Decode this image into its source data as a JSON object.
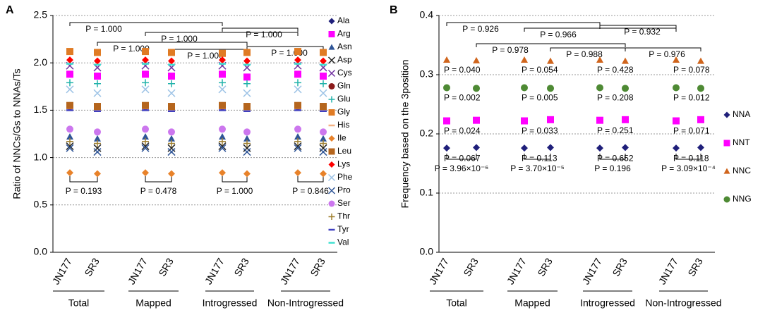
{
  "chart_data": [
    {
      "panel": "A",
      "type": "dot",
      "ylabel": "Ratio of NNCs/Gs to NNAs/Ts",
      "categories": [
        "JN177",
        "SR3",
        "JN177",
        "SR3",
        "JN177",
        "SR3",
        "JN177",
        "SR3"
      ],
      "groups": [
        "Total",
        "Mapped",
        "Introgressed",
        "Non-Introgressed"
      ],
      "ylim": [
        0,
        2.5
      ],
      "yticks": [
        {
          "value": 0,
          "label": "0.0"
        },
        0.5,
        {
          "value": 1,
          "label": "1.0"
        },
        1.5,
        {
          "value": 2,
          "label": "2.0"
        },
        2.5
      ],
      "grid": true,
      "series": [
        {
          "name": "Ala",
          "color": "#1f1f7a",
          "marker": "diamond",
          "values": [
            1.55,
            1.53,
            1.55,
            1.53,
            1.55,
            1.53,
            1.55,
            1.53
          ]
        },
        {
          "name": "Arg",
          "color": "#ff00ff",
          "marker": "square",
          "values": [
            1.88,
            1.86,
            1.88,
            1.86,
            1.88,
            1.85,
            1.88,
            1.86
          ]
        },
        {
          "name": "Asn",
          "color": "#2f5597",
          "marker": "triangle",
          "values": [
            1.22,
            1.2,
            1.22,
            1.2,
            1.22,
            1.2,
            1.22,
            1.2
          ]
        },
        {
          "name": "Asp",
          "color": "#222222",
          "marker": "x",
          "values": [
            1.12,
            1.1,
            1.12,
            1.1,
            1.12,
            1.1,
            1.12,
            1.1
          ]
        },
        {
          "name": "Cys",
          "color": "#7030a0",
          "marker": "x",
          "values": [
            1.97,
            1.95,
            1.97,
            1.95,
            1.97,
            1.95,
            1.97,
            1.95
          ]
        },
        {
          "name": "Gln",
          "color": "#8b1a1a",
          "marker": "circle",
          "values": [
            1.54,
            1.52,
            1.54,
            1.52,
            1.54,
            1.52,
            1.54,
            1.52
          ]
        },
        {
          "name": "Glu",
          "color": "#20b2aa",
          "marker": "plus",
          "values": [
            1.79,
            1.78,
            1.79,
            1.78,
            1.79,
            1.78,
            1.79,
            1.78
          ]
        },
        {
          "name": "Gly",
          "color": "#e07b24",
          "marker": "square",
          "values": [
            2.12,
            2.11,
            2.12,
            2.11,
            2.1,
            2.11,
            2.12,
            2.11
          ]
        },
        {
          "name": "His",
          "color": "#f4b183",
          "marker": "dash",
          "values": [
            1.52,
            1.5,
            1.52,
            1.5,
            1.52,
            1.5,
            1.52,
            1.5
          ]
        },
        {
          "name": "Ile",
          "color": "#e8822a",
          "marker": "diamond",
          "values": [
            0.84,
            0.83,
            0.84,
            0.83,
            0.84,
            0.83,
            0.84,
            0.83
          ]
        },
        {
          "name": "Leu",
          "color": "#b5651d",
          "marker": "square",
          "values": [
            1.55,
            1.54,
            1.55,
            1.54,
            1.55,
            1.54,
            1.55,
            1.54
          ]
        },
        {
          "name": "Lys",
          "color": "#ff0000",
          "marker": "diamond",
          "values": [
            2.03,
            2.02,
            2.03,
            2.02,
            2.03,
            2.02,
            2.03,
            2.02
          ]
        },
        {
          "name": "Phe",
          "color": "#9dc3e6",
          "marker": "x",
          "values": [
            1.72,
            1.68,
            1.72,
            1.68,
            1.72,
            1.68,
            1.72,
            1.68
          ]
        },
        {
          "name": "Pro",
          "color": "#2f5597",
          "marker": "x",
          "values": [
            1.1,
            1.06,
            1.1,
            1.06,
            1.1,
            1.06,
            1.1,
            1.06
          ]
        },
        {
          "name": "Ser",
          "color": "#cc77ee",
          "marker": "circle",
          "values": [
            1.3,
            1.27,
            1.3,
            1.27,
            1.3,
            1.27,
            1.3,
            1.27
          ]
        },
        {
          "name": "Thr",
          "color": "#a08030",
          "marker": "plus",
          "values": [
            1.17,
            1.15,
            1.17,
            1.15,
            1.17,
            1.15,
            1.17,
            1.15
          ]
        },
        {
          "name": "Tyr",
          "color": "#4040c0",
          "marker": "dash",
          "values": [
            1.5,
            1.49,
            1.5,
            1.49,
            1.5,
            1.49,
            1.5,
            1.49
          ]
        },
        {
          "name": "Val",
          "color": "#40e0d0",
          "marker": "dash",
          "values": [
            1.99,
            1.98,
            1.99,
            1.98,
            1.99,
            1.98,
            1.99,
            1.98
          ]
        }
      ],
      "top_brackets": [
        "P = 1.000",
        "P = 1.000",
        "P = 1.000",
        "P = 1.000",
        "P = 1.000",
        "P = 1.000"
      ],
      "pair_brackets": [
        "P = 0.193",
        "P = 0.478",
        "P = 1.000",
        "P = 0.846"
      ]
    },
    {
      "panel": "B",
      "type": "dot",
      "ylabel": "Frequency based on the 3position",
      "categories": [
        "JN177",
        "SR3",
        "JN177",
        "SR3",
        "JN177",
        "SR3",
        "JN177",
        "SR3"
      ],
      "groups": [
        "Total",
        "Mapped",
        "Introgressed",
        "Non-Introgressed"
      ],
      "ylim": [
        0,
        0.4
      ],
      "yticks": [
        {
          "value": 0,
          "label": "0.0"
        },
        0.1,
        0.2,
        0.3,
        0.4
      ],
      "grid": true,
      "series": [
        {
          "name": "NNA",
          "color": "#1f1f7a",
          "marker": "diamond",
          "values": [
            0.176,
            0.177,
            0.176,
            0.177,
            0.176,
            0.177,
            0.176,
            0.177
          ],
          "p_labels": [
            "P = 0.067",
            "P = 0.113",
            "P = 0.652",
            "P = 0.118"
          ]
        },
        {
          "name": "NNT",
          "color": "#ff00ff",
          "marker": "square",
          "values": [
            0.222,
            0.223,
            0.222,
            0.224,
            0.223,
            0.224,
            0.222,
            0.224
          ],
          "p_labels": [
            "P = 0.024",
            "P = 0.033",
            "P = 0.251",
            "P = 0.071"
          ]
        },
        {
          "name": "NNC",
          "color": "#d0651d",
          "marker": "triangle",
          "values": [
            0.325,
            0.324,
            0.325,
            0.323,
            0.325,
            0.323,
            0.325,
            0.323
          ],
          "p_labels": [
            "P = 0.040",
            "P = 0.054",
            "P = 0.428",
            "P = 0.078"
          ]
        },
        {
          "name": "NNG",
          "color": "#4e8a34",
          "marker": "circle",
          "values": [
            0.278,
            0.277,
            0.278,
            0.277,
            0.278,
            0.277,
            0.278,
            0.277
          ],
          "p_labels": [
            "P = 0.002",
            "P = 0.005",
            "P = 0.208",
            "P = 0.012"
          ]
        }
      ],
      "top_brackets": [
        "P = 0.926",
        "P = 0.966",
        "P = 0.932",
        "P = 0.978",
        "P = 0.988",
        "P = 0.976"
      ],
      "pair_brackets": [
        "P = 3.96×10⁻⁶",
        "P = 3.70×10⁻⁵",
        "P = 0.196",
        "P = 3.09×10⁻⁴"
      ]
    }
  ]
}
